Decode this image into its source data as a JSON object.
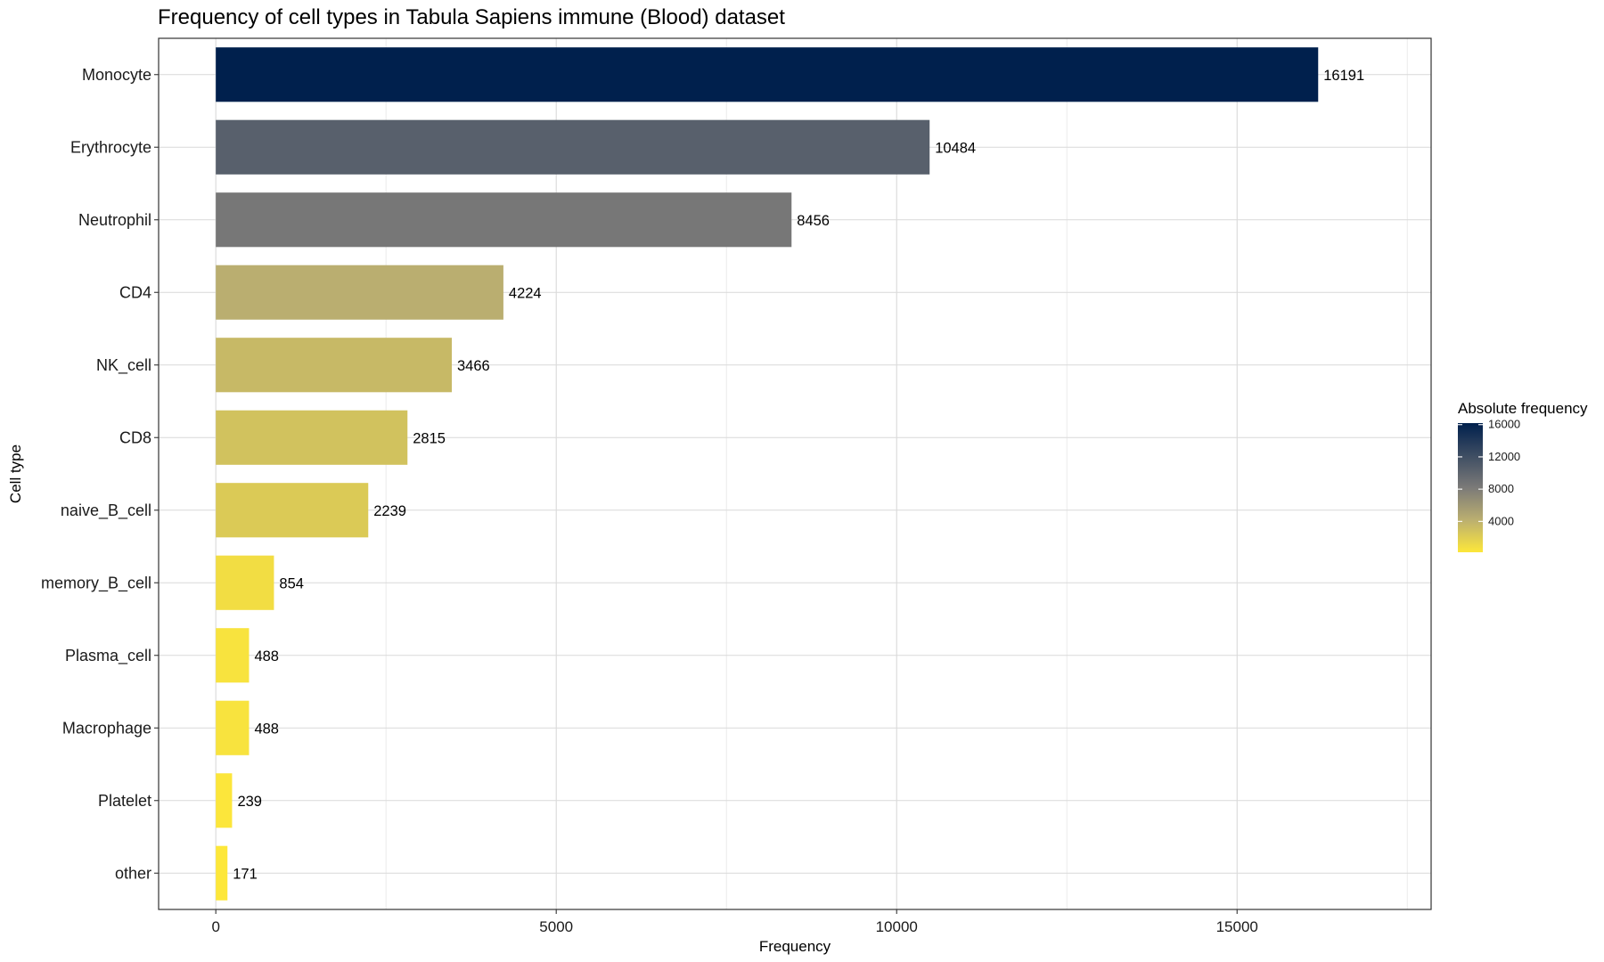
{
  "chart_data": {
    "type": "bar",
    "orientation": "horizontal",
    "title": "Frequency of cell types in Tabula Sapiens immune (Blood) dataset",
    "xlabel": "Frequency",
    "ylabel": "Cell type",
    "categories": [
      "Monocyte",
      "Erythrocyte",
      "Neutrophil",
      "CD4",
      "NK_cell",
      "CD8",
      "naive_B_cell",
      "memory_B_cell",
      "Plasma_cell",
      "Macrophage",
      "Platelet",
      "other"
    ],
    "values": [
      16191,
      10484,
      8456,
      4224,
      3466,
      2815,
      2239,
      854,
      488,
      488,
      239,
      171
    ],
    "value_labels": [
      "16191",
      "10484",
      "8456",
      "4224",
      "3466",
      "2815",
      "2239",
      "854",
      "488",
      "488",
      "239",
      "171"
    ],
    "xlim": [
      -840,
      17850
    ],
    "xticks": [
      0,
      5000,
      10000,
      15000
    ],
    "xtick_labels": [
      "0",
      "5000",
      "10000",
      "15000"
    ],
    "grid": true,
    "legend": {
      "title": "Absolute frequency",
      "position": "right",
      "ticks": [
        16000,
        12000,
        8000,
        4000
      ],
      "tick_labels": [
        "16000",
        "12000",
        "8000",
        "4000"
      ],
      "range": [
        171,
        16191
      ],
      "colors": {
        "low": "#FDE73A",
        "mid": "#BBAF70",
        "midhigh": "#7B7A78",
        "high": "#00204D"
      }
    }
  }
}
